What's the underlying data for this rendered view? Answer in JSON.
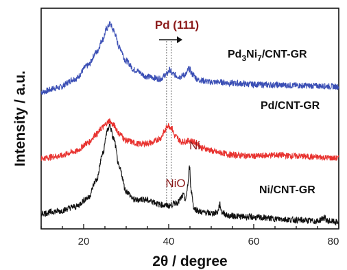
{
  "chart_data": {
    "type": "line",
    "xlabel": "2θ / degree",
    "ylabel": "Intensity / a.u.",
    "xlim": [
      10,
      80
    ],
    "xticks": [
      20,
      40,
      60,
      80
    ],
    "yticks_shown": false,
    "grid": false,
    "legend": "none (labels placed beside each curve)",
    "series": [
      {
        "name": "Pd3Ni7/CNT-GR",
        "label_base": "Pd",
        "label_sub1": "3",
        "label_mid": "Ni",
        "label_sub2": "7",
        "label_tail": "/CNT-GR",
        "color": "#3b4fb5",
        "x": [
          10,
          14,
          18,
          21,
          23,
          24.5,
          25.5,
          26.2,
          27,
          28.5,
          30,
          32,
          35,
          38,
          39.5,
          40.2,
          41,
          42.5,
          44,
          44.8,
          45.6,
          47,
          50,
          52,
          55,
          60,
          65,
          70,
          75,
          80
        ],
        "y": [
          0.62,
          0.64,
          0.68,
          0.74,
          0.8,
          0.86,
          0.91,
          0.93,
          0.9,
          0.82,
          0.76,
          0.72,
          0.69,
          0.68,
          0.7,
          0.72,
          0.7,
          0.69,
          0.7,
          0.725,
          0.7,
          0.675,
          0.665,
          0.665,
          0.66,
          0.655,
          0.652,
          0.65,
          0.648,
          0.645
        ]
      },
      {
        "name": "Pd/CNT-GR",
        "color": "#e8322f",
        "x": [
          10,
          14,
          18,
          21,
          23,
          24.5,
          25.5,
          26,
          27,
          28.5,
          30,
          33,
          36,
          38,
          39,
          39.8,
          40.6,
          41.5,
          43,
          45,
          46.5,
          48,
          52,
          55,
          60,
          65,
          70,
          75,
          80
        ],
        "y": [
          0.32,
          0.33,
          0.35,
          0.39,
          0.43,
          0.46,
          0.48,
          0.49,
          0.47,
          0.43,
          0.4,
          0.385,
          0.39,
          0.41,
          0.44,
          0.47,
          0.46,
          0.42,
          0.395,
          0.4,
          0.39,
          0.365,
          0.345,
          0.335,
          0.33,
          0.335,
          0.33,
          0.325,
          0.32
        ]
      },
      {
        "name": "Ni/CNT-GR",
        "color": "#111111",
        "x": [
          10,
          14,
          18,
          21,
          23,
          24.5,
          25.5,
          26.1,
          27,
          28.5,
          30,
          32,
          34,
          36,
          38,
          40,
          42,
          43.5,
          44,
          44.5,
          44.9,
          45.3,
          46,
          48,
          50,
          51.5,
          52,
          52.5,
          54,
          58,
          62,
          66,
          70,
          75,
          76.5,
          77.5,
          80
        ],
        "y": [
          0.07,
          0.08,
          0.1,
          0.14,
          0.22,
          0.34,
          0.44,
          0.47,
          0.41,
          0.27,
          0.17,
          0.13,
          0.135,
          0.125,
          0.11,
          0.105,
          0.12,
          0.15,
          0.13,
          0.2,
          0.28,
          0.17,
          0.09,
          0.075,
          0.07,
          0.075,
          0.11,
          0.075,
          0.06,
          0.055,
          0.05,
          0.045,
          0.04,
          0.035,
          0.05,
          0.035,
          0.03
        ]
      }
    ],
    "annotations": [
      {
        "text": "Pd (111)",
        "x": 40,
        "note": "dotted reference lines at 39.5 and 40.6 with arrow to the right"
      },
      {
        "text": "NiO",
        "x": 43.2
      },
      {
        "text": "Ni",
        "x": 44.9
      }
    ],
    "reference_lines_x": [
      39.5,
      40.6
    ]
  }
}
